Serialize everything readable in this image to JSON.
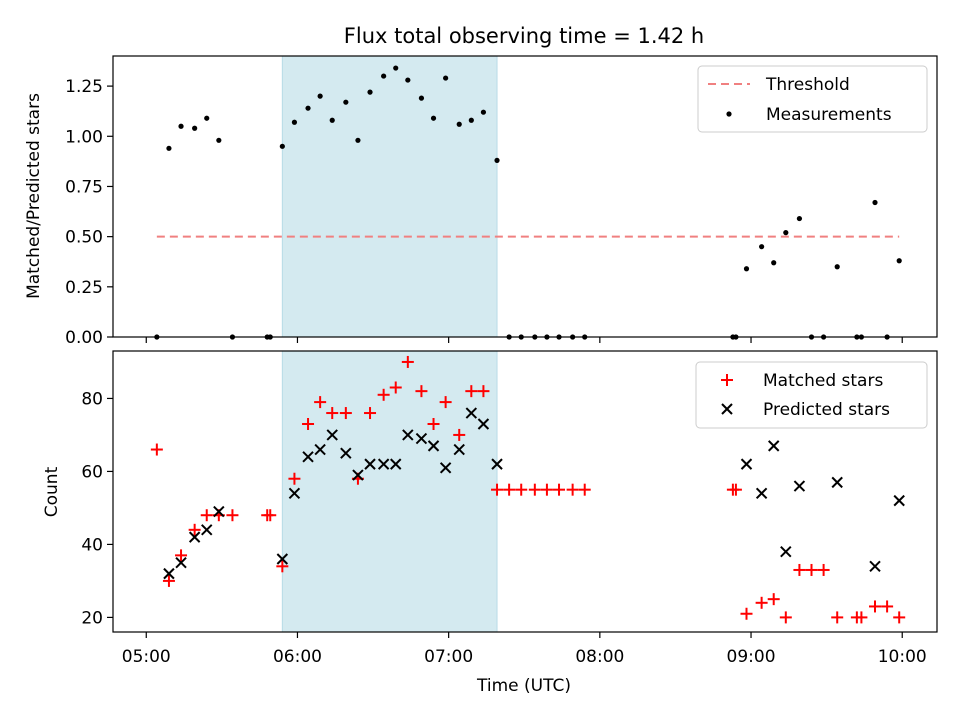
{
  "title": "Flux total observing time = 1.42 h",
  "xlabel": "Time (UTC)",
  "x_ticks": [
    "05:00",
    "06:00",
    "07:00",
    "08:00",
    "09:00",
    "10:00"
  ],
  "x_tick_values": [
    5.0,
    6.0,
    7.0,
    8.0,
    9.0,
    10.0
  ],
  "xlim": [
    4.78,
    10.23
  ],
  "shaded_span": {
    "start": 5.9,
    "end": 7.32,
    "color": "#d4eaf0"
  },
  "chart_data": [
    {
      "type": "scatter",
      "ylabel": "Matched/Predicted stars",
      "ylim": [
        0,
        1.4
      ],
      "y_ticks": [
        "0.00",
        "0.25",
        "0.50",
        "0.75",
        "1.00",
        "1.25"
      ],
      "y_tick_values": [
        0,
        0.25,
        0.5,
        0.75,
        1.0,
        1.25
      ],
      "threshold": {
        "name": "Threshold",
        "value": 0.5,
        "x_range": [
          5.07,
          9.98
        ],
        "color": "#f08080"
      },
      "legend_position": "top-right",
      "series": [
        {
          "name": "Measurements",
          "color": "#000000",
          "marker": "dot",
          "x": [
            5.07,
            5.15,
            5.23,
            5.32,
            5.4,
            5.48,
            5.57,
            5.8,
            5.82,
            5.9,
            5.98,
            6.07,
            6.15,
            6.23,
            6.32,
            6.4,
            6.48,
            6.57,
            6.65,
            6.73,
            6.82,
            6.9,
            6.98,
            7.07,
            7.15,
            7.23,
            7.32,
            7.4,
            7.48,
            7.57,
            7.65,
            7.73,
            7.82,
            7.9,
            8.88,
            8.9,
            8.97,
            9.07,
            9.15,
            9.23,
            9.32,
            9.4,
            9.48,
            9.57,
            9.7,
            9.73,
            9.82,
            9.9,
            9.98
          ],
          "y": [
            0.0,
            0.94,
            1.05,
            1.04,
            1.09,
            0.98,
            0.0,
            0.0,
            0.0,
            0.95,
            1.07,
            1.14,
            1.2,
            1.08,
            1.17,
            0.98,
            1.22,
            1.3,
            1.34,
            1.28,
            1.19,
            1.09,
            1.29,
            1.06,
            1.08,
            1.12,
            0.88,
            0.0,
            0.0,
            0.0,
            0.0,
            0.0,
            0.0,
            0.0,
            0.0,
            0.0,
            0.34,
            0.45,
            0.37,
            0.52,
            0.59,
            0.0,
            0.0,
            0.35,
            0.0,
            0.0,
            0.67,
            0.0,
            0.38
          ]
        }
      ]
    },
    {
      "type": "scatter",
      "ylabel": "Count",
      "ylim": [
        16,
        93
      ],
      "y_ticks": [
        "20",
        "40",
        "60",
        "80"
      ],
      "y_tick_values": [
        20,
        40,
        60,
        80
      ],
      "legend_position": "top-right",
      "series": [
        {
          "name": "Matched stars",
          "color": "#ff0000",
          "marker": "plus",
          "x": [
            5.07,
            5.15,
            5.23,
            5.32,
            5.4,
            5.48,
            5.57,
            5.8,
            5.82,
            5.9,
            5.98,
            6.07,
            6.15,
            6.23,
            6.32,
            6.4,
            6.48,
            6.57,
            6.65,
            6.73,
            6.82,
            6.9,
            6.98,
            7.07,
            7.15,
            7.23,
            7.32,
            7.4,
            7.48,
            7.57,
            7.65,
            7.73,
            7.82,
            7.9,
            8.88,
            8.9,
            8.97,
            9.07,
            9.15,
            9.23,
            9.32,
            9.4,
            9.48,
            9.57,
            9.7,
            9.73,
            9.82,
            9.9,
            9.98
          ],
          "y": [
            66,
            30,
            37,
            44,
            48,
            48,
            48,
            48,
            48,
            34,
            58,
            73,
            79,
            76,
            76,
            58,
            76,
            81,
            83,
            90,
            82,
            73,
            79,
            70,
            82,
            82,
            55,
            55,
            55,
            55,
            55,
            55,
            55,
            55,
            55,
            55,
            21,
            24,
            25,
            20,
            33,
            33,
            33,
            20,
            20,
            20,
            23,
            23,
            20
          ]
        },
        {
          "name": "Predicted stars",
          "color": "#000000",
          "marker": "x",
          "x": [
            5.15,
            5.23,
            5.32,
            5.4,
            5.48,
            5.9,
            5.98,
            6.07,
            6.15,
            6.23,
            6.32,
            6.4,
            6.48,
            6.57,
            6.65,
            6.73,
            6.82,
            6.9,
            6.98,
            7.07,
            7.15,
            7.23,
            7.32,
            8.97,
            9.07,
            9.15,
            9.23,
            9.32,
            9.57,
            9.82,
            9.98
          ],
          "y": [
            32,
            35,
            42,
            44,
            49,
            36,
            54,
            64,
            66,
            70,
            65,
            59,
            62,
            62,
            62,
            70,
            69,
            67,
            61,
            66,
            76,
            73,
            62,
            62,
            54,
            67,
            38,
            56,
            57,
            34,
            52
          ]
        }
      ]
    }
  ]
}
